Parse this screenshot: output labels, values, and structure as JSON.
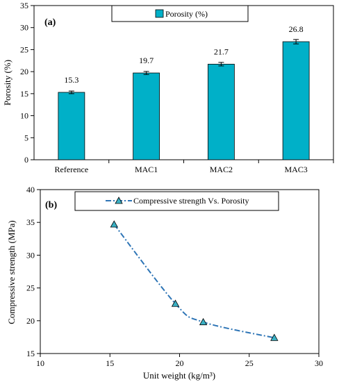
{
  "colors": {
    "bar": "#00B0C8",
    "line": "#2E75B6",
    "marker": "#3AB0C4"
  },
  "chart_data": [
    {
      "type": "bar",
      "panel_label": "(a)",
      "categories": [
        "Reference",
        "MAC1",
        "MAC2",
        "MAC3"
      ],
      "series": [
        {
          "name": "Porosity (%)",
          "values": [
            15.3,
            19.7,
            21.7,
            26.8
          ],
          "error": [
            0.3,
            0.35,
            0.4,
            0.5
          ]
        }
      ],
      "data_labels": [
        "15.3",
        "19.7",
        "21.7",
        "26.8"
      ],
      "xlabel": "",
      "ylabel": "Porosity (%)",
      "ylim": [
        0,
        35
      ],
      "yticks": [
        0,
        5,
        10,
        15,
        20,
        25,
        30,
        35
      ],
      "legend": "top-center",
      "grid": false
    },
    {
      "type": "line",
      "panel_label": "(b)",
      "series": [
        {
          "name": "Compressive strength Vs. Porosity",
          "x": [
            15.3,
            19.7,
            21.7,
            26.8
          ],
          "y": [
            34.7,
            22.6,
            19.8,
            17.4
          ]
        }
      ],
      "xlabel": "Unit weight (kg/m³)",
      "ylabel": "Compressive strength (MPa)",
      "xlim": [
        10,
        30
      ],
      "ylim": [
        15,
        40
      ],
      "xticks": [
        10,
        15,
        20,
        25,
        30
      ],
      "yticks": [
        15,
        20,
        25,
        30,
        35,
        40
      ],
      "legend": "top-center",
      "grid": false
    }
  ]
}
